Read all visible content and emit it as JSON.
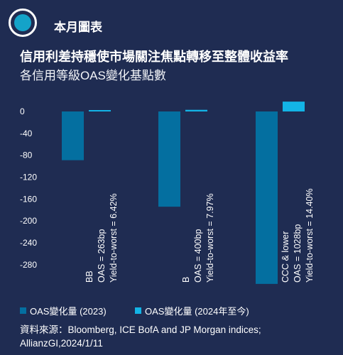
{
  "header": {
    "label": "本月圖表"
  },
  "chart_data": {
    "type": "bar",
    "title": "信用利差持穩使市場關注焦點轉移至整體收益率",
    "subtitle": "各信用等級OAS變化基點數",
    "xlabel": "",
    "ylabel": "",
    "ylim": [
      -300,
      10
    ],
    "yticks": [
      0,
      -40,
      -80,
      -120,
      -160,
      -200,
      -240,
      -280
    ],
    "yticklabels": [
      "0",
      "-40",
      "-80",
      "-120",
      "-160",
      "-200",
      "-240",
      "-280"
    ],
    "categories": [
      "BB",
      "B",
      "CCC & lower"
    ],
    "category_annotations": [
      [
        "BB",
        "OAS = 263bp",
        "Yield-to-worst = 6.42%"
      ],
      [
        "B",
        "OAS = 400bp",
        "Yield-to-worst = 7.97%"
      ],
      [
        "CCC & lower",
        "OAS = 1028bp",
        "Yield-to-worst = 14.40%"
      ]
    ],
    "series": [
      {
        "name": "OAS變化量 (2023)",
        "values": [
          -89,
          -174,
          -315
        ],
        "color": "#046fa0"
      },
      {
        "name": "OAS變化量 (2024年至今)",
        "values": [
          1,
          3,
          18
        ],
        "color": "#13b4e6"
      }
    ],
    "grid": false,
    "legend": "bottom"
  },
  "source": "資料來源：Bloomberg, ICE BofA and JP Morgan indices; AllianzGI,2024/1/11",
  "colors": {
    "background": "#1f2c52",
    "accent": "#14a3c9"
  }
}
